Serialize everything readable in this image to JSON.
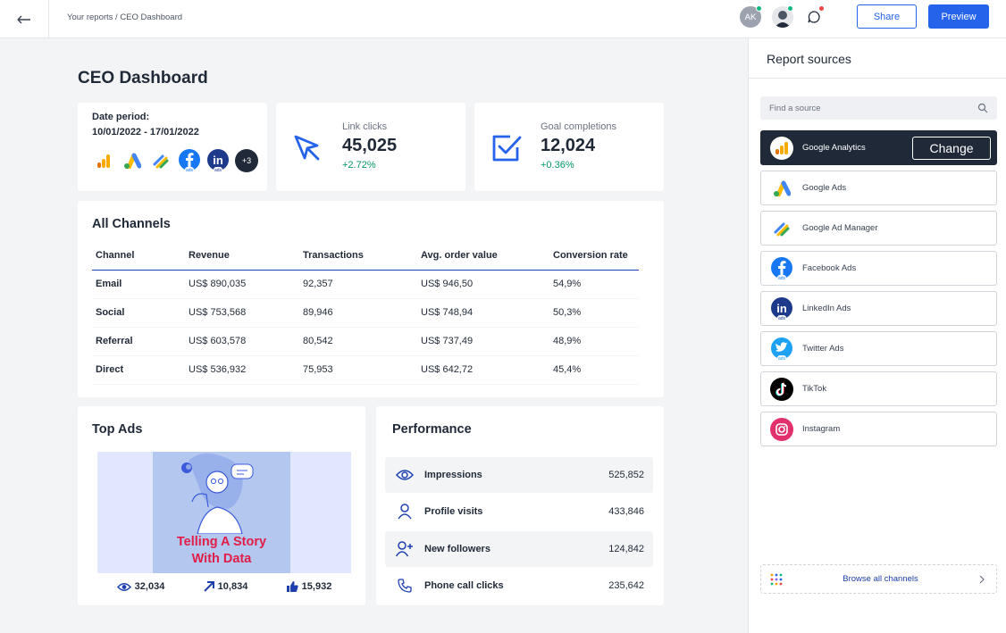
{
  "topbar": {
    "back_icon": "arrow-left-icon",
    "breadcrumb": "Your reports / CEO Dashboard",
    "avatar_initials": "AK",
    "share_label": "Share",
    "preview_label": "Preview"
  },
  "page": {
    "title": "CEO Dashboard"
  },
  "date_card": {
    "label": "Date period:",
    "value": "10/01/2022 - 17/01/2022",
    "more_count": "+3",
    "ads_tag": "ads"
  },
  "metrics": [
    {
      "label": "Link clicks",
      "value": "45,025",
      "delta": "+2.72%",
      "icon": "cursor-icon"
    },
    {
      "label": "Goal completions",
      "value": "12,024",
      "delta": "+0.36%",
      "icon": "checkbox-icon"
    }
  ],
  "channels": {
    "title": "All Channels",
    "columns": [
      "Channel",
      "Revenue",
      "Transactions",
      "Avg. order value",
      "Conversion rate"
    ],
    "rows": [
      [
        "Email",
        "US$ 890,035",
        "92,357",
        "US$ 946,50",
        "54,9%"
      ],
      [
        "Social",
        "US$ 753,568",
        "89,946",
        "US$ 748,94",
        "50,3%"
      ],
      [
        "Referral",
        "US$ 603,578",
        "80,542",
        "US$ 737,49",
        "48,9%"
      ],
      [
        "Direct",
        "US$ 536,932",
        "75,953",
        "US$ 642,72",
        "45,4%"
      ]
    ]
  },
  "top_ads": {
    "title": "Top Ads",
    "ad_line1": "Telling A Story",
    "ad_line2": "With Data",
    "views": "32,034",
    "shares": "10,834",
    "likes": "15,932"
  },
  "performance": {
    "title": "Performance",
    "rows": [
      {
        "label": "Impressions",
        "value": "525,852",
        "icon": "eye-icon"
      },
      {
        "label": "Profile visits",
        "value": "433,846",
        "icon": "user-icon"
      },
      {
        "label": "New followers",
        "value": "124,842",
        "icon": "user-plus-icon"
      },
      {
        "label": "Phone call clicks",
        "value": "235,642",
        "icon": "phone-icon"
      }
    ]
  },
  "sources_panel": {
    "title": "Report sources",
    "search_placeholder": "Find a source",
    "change_label": "Change",
    "ads_tag": "ads",
    "items": [
      {
        "name": "Google Analytics",
        "active": true
      },
      {
        "name": "Google Ads"
      },
      {
        "name": "Google Ad Manager"
      },
      {
        "name": "Facebook Ads"
      },
      {
        "name": "LinkedIn Ads"
      },
      {
        "name": "Twitter Ads"
      },
      {
        "name": "TikTok"
      },
      {
        "name": "Instagram"
      }
    ],
    "browse_label": "Browse all channels"
  },
  "colors": {
    "accent": "#2563eb",
    "positive": "#059669",
    "dark": "#1f2937"
  }
}
